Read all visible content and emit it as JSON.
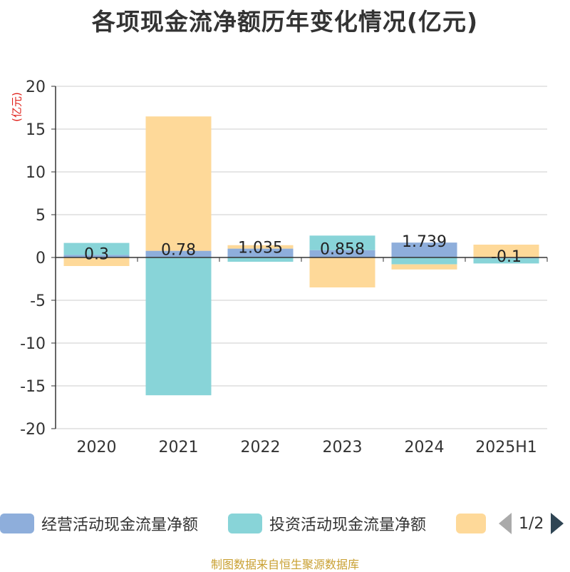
{
  "title": "各项现金流净额历年变化情况(亿元)",
  "unit_label": "(亿元)",
  "source": "制图数据来自恒生聚源数据库",
  "legend": {
    "items": [
      {
        "label": "经营活动现金流量净额",
        "color": "#8eaedb"
      },
      {
        "label": "投资活动现金流量净额",
        "color": "#88d4d8"
      },
      {
        "label": "",
        "color": "#fed999"
      }
    ],
    "page": "1/2"
  },
  "chart_data": {
    "type": "bar",
    "stacked": true,
    "categories": [
      "2020",
      "2021",
      "2022",
      "2023",
      "2024",
      "2025H1"
    ],
    "ylim": [
      -20,
      20
    ],
    "yticks": [
      20,
      15,
      10,
      5,
      0,
      -5,
      -10,
      -15,
      -20
    ],
    "grid": true,
    "series": [
      {
        "name": "经营活动现金流量净额",
        "color": "#8eaedb",
        "values": [
          0.3,
          0.78,
          1.035,
          0.858,
          1.739,
          -0.1
        ],
        "labels": [
          "0.3",
          "0.78",
          "1.035",
          "0.858",
          "1.739",
          "-0.1"
        ]
      },
      {
        "name": "投资活动现金流量净额",
        "color": "#88d4d8",
        "values": [
          1.4,
          -16.1,
          -0.5,
          1.7,
          -0.8,
          -0.6
        ]
      },
      {
        "color": "#fed999",
        "values": [
          -1.0,
          15.7,
          0.4,
          -3.5,
          -0.6,
          1.5
        ]
      }
    ]
  }
}
